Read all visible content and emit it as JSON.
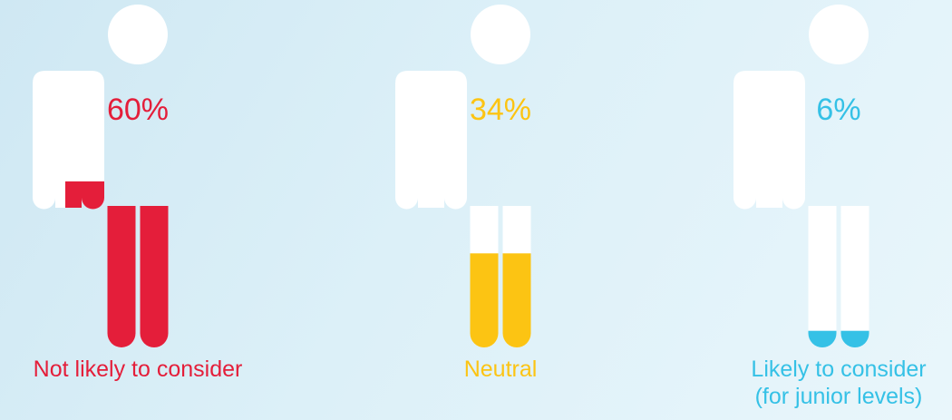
{
  "chart_data": {
    "type": "bar",
    "categories": [
      "Not likely to consider",
      "Neutral",
      "Likely to consider (for junior levels)"
    ],
    "values": [
      60,
      34,
      6
    ],
    "unit": "%",
    "value_labels": [
      "60%",
      "34%",
      "6%"
    ],
    "label_lines": [
      [
        "Not likely to consider"
      ],
      [
        "Neutral"
      ],
      [
        "Likely to consider",
        "(for junior levels)"
      ]
    ],
    "colors": [
      "#e41e3a",
      "#fcc413",
      "#35c1e6"
    ],
    "figure_color": "#ffffff",
    "ylim": [
      0,
      100
    ],
    "grid": false
  }
}
